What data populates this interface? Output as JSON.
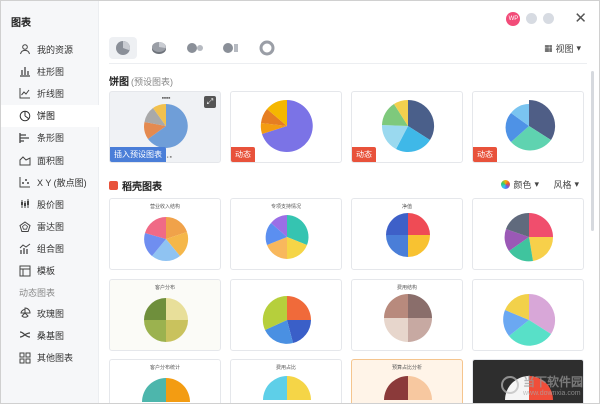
{
  "app": {
    "title": "图表"
  },
  "sidebar": {
    "items": [
      {
        "label": "我的资源",
        "icon": "user-icon"
      },
      {
        "label": "柱形图",
        "icon": "bar-chart-icon"
      },
      {
        "label": "折线图",
        "icon": "line-chart-icon"
      },
      {
        "label": "饼图",
        "icon": "pie-chart-icon",
        "active": true
      },
      {
        "label": "条形图",
        "icon": "horizontal-bar-icon"
      },
      {
        "label": "面积图",
        "icon": "area-chart-icon"
      },
      {
        "label": "X Y (散点图)",
        "icon": "scatter-icon"
      },
      {
        "label": "股价图",
        "icon": "stock-chart-icon"
      },
      {
        "label": "雷达图",
        "icon": "radar-chart-icon"
      },
      {
        "label": "组合图",
        "icon": "combo-chart-icon"
      },
      {
        "label": "模板",
        "icon": "template-icon"
      }
    ],
    "group_label": "动态图表",
    "dynamic_items": [
      {
        "label": "玫瑰图",
        "icon": "rose-chart-icon"
      },
      {
        "label": "桑基图",
        "icon": "sankey-icon"
      },
      {
        "label": "其他图表",
        "icon": "other-chart-icon"
      }
    ]
  },
  "header": {
    "avatar_text": "WP",
    "view_label": "视图",
    "close_icon": "close-icon"
  },
  "preset": {
    "title": "饼图",
    "subtitle": "(预设图表)",
    "insert_label": "插入预设图表",
    "dynamic_label": "动态"
  },
  "templates": {
    "title": "稻壳图表",
    "color_label": "颜色",
    "style_label": "风格",
    "card_titles": [
      "营业收入结构",
      "专项支持情况",
      "净值",
      "",
      "客户分布",
      "",
      "费用结构",
      "",
      "客户分布统计",
      "费用占比",
      "预算占比分析",
      ""
    ]
  },
  "watermark": {
    "text": "当下软件园",
    "url": "www.downxia.com"
  },
  "colors": {
    "accent": "#4a7ed8",
    "dynamic": "#e8523b"
  }
}
